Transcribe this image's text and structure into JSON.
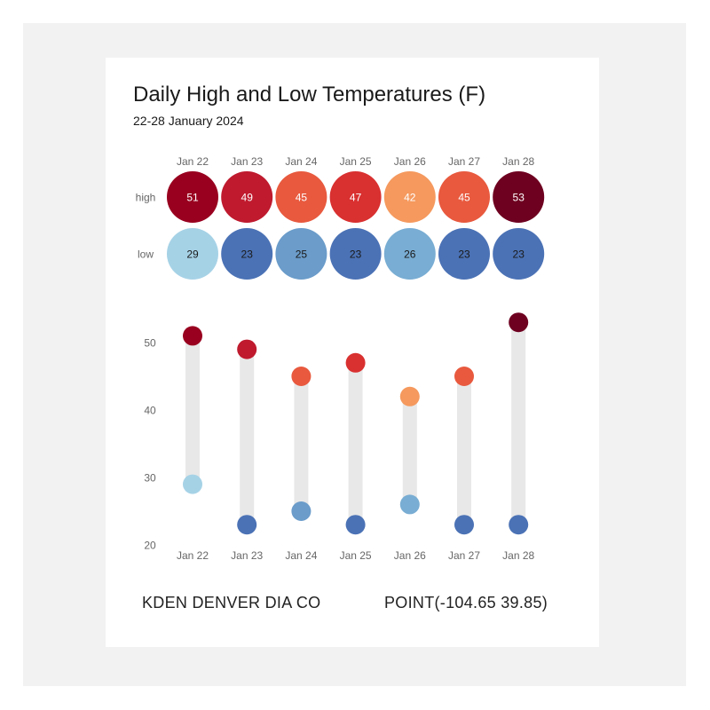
{
  "chart_data": {
    "type": "dot-range",
    "title": "Daily High and Low Temperatures (F)",
    "subtitle": "22-28 January 2024",
    "categories": [
      "Jan 22",
      "Jan 23",
      "Jan 24",
      "Jan 25",
      "Jan 26",
      "Jan 27",
      "Jan 28"
    ],
    "series": [
      {
        "name": "high",
        "values": [
          51,
          49,
          45,
          47,
          42,
          45,
          53
        ]
      },
      {
        "name": "low",
        "values": [
          29,
          23,
          25,
          23,
          26,
          23,
          23
        ]
      }
    ],
    "ylim": [
      20,
      55
    ],
    "yticks": [
      20,
      30,
      40,
      50
    ],
    "colors": {
      "high": [
        "#99001f",
        "#bf1a2e",
        "#e8593e",
        "#d93030",
        "#f5995e",
        "#e8593e",
        "#6e0020"
      ],
      "low": [
        "#a6d2e6",
        "#4b72b5",
        "#6b9cca",
        "#4b72b5",
        "#79add3",
        "#4b72b5",
        "#4b72b5"
      ],
      "high_text": "#ffffff",
      "low_text": "#1a1a1a",
      "bar": "#e8e8e8",
      "axis_text": "#666666"
    }
  },
  "footer": {
    "station": "KDEN DENVER DIA CO",
    "point": "POINT(-104.65 39.85)"
  }
}
